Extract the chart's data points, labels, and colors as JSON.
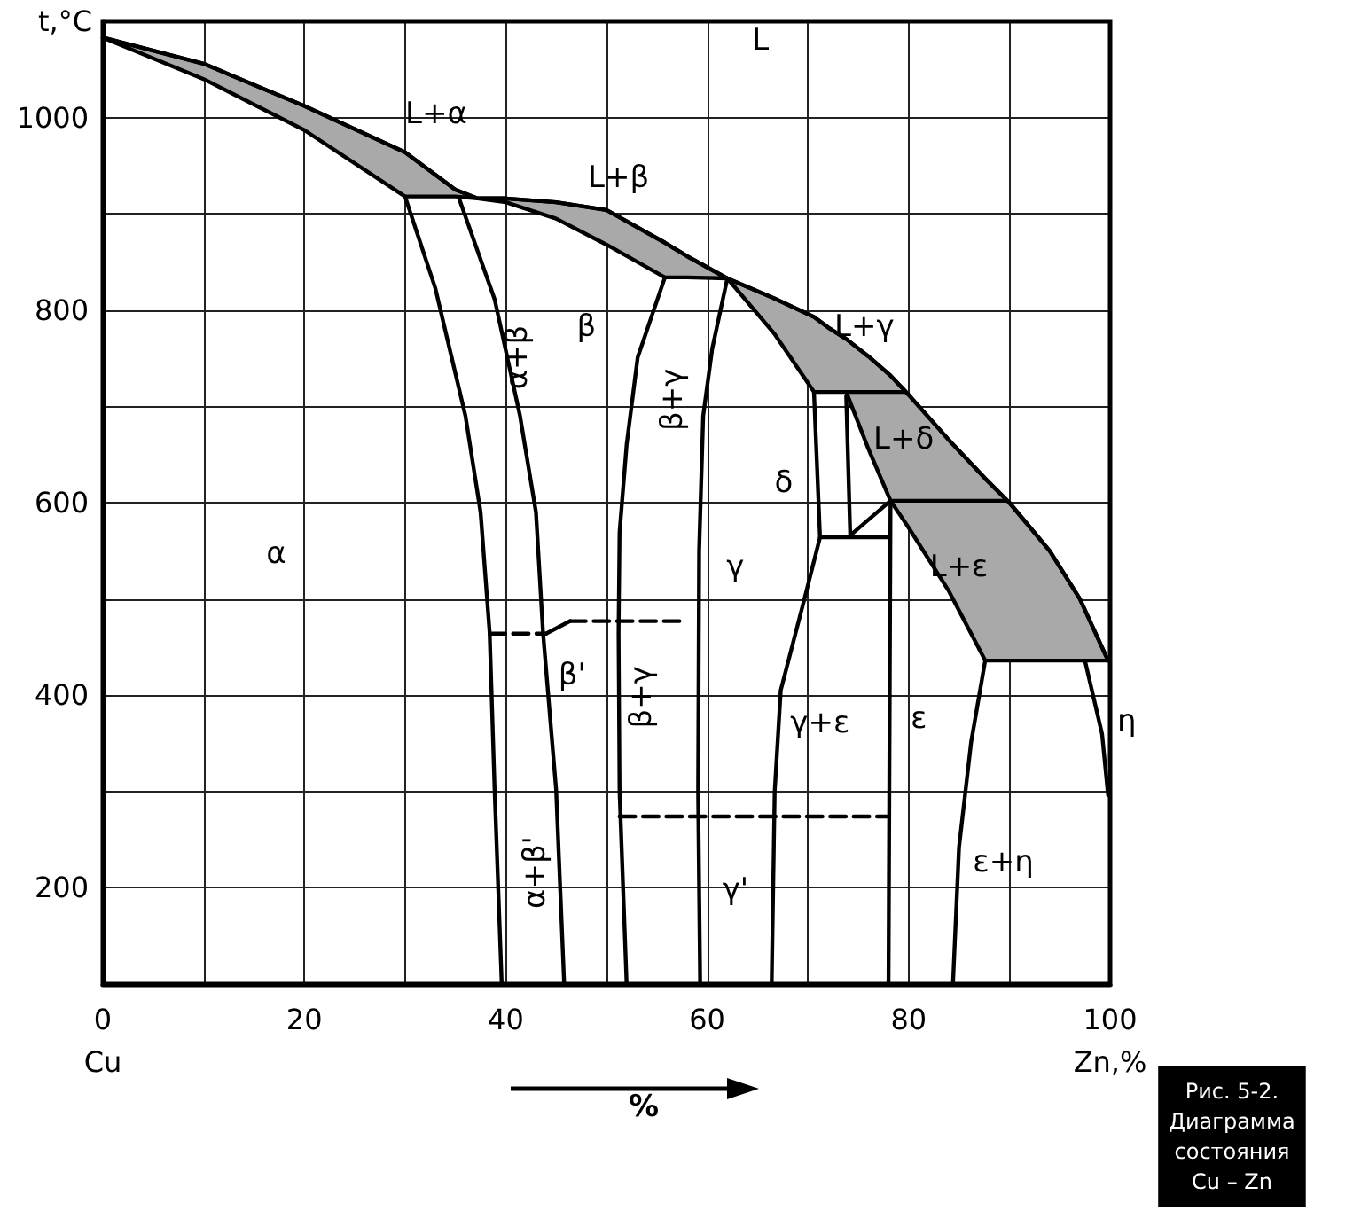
{
  "chart_data": {
    "type": "line",
    "title": "Рис. 5-2.\nДиаграмма\nсостояния\nCu – Zn",
    "xlabel": "%",
    "ylabel": "t,°C",
    "xlim": [
      0,
      100
    ],
    "ylim": [
      100,
      1100
    ],
    "xticks": [
      {
        "value": 0,
        "label": "0\nCu"
      },
      {
        "value": 10,
        "label": null
      },
      20,
      {
        "value": 30,
        "label": null
      },
      40,
      {
        "value": 50,
        "label": null
      },
      60,
      {
        "value": 70,
        "label": null
      },
      80,
      {
        "value": 90,
        "label": null
      },
      {
        "value": 100,
        "label": "100\nZn,%"
      }
    ],
    "yticks": [
      {
        "value": 100,
        "label": null
      },
      200,
      {
        "value": 300,
        "label": null
      },
      400,
      {
        "value": 500,
        "label": null
      },
      600,
      {
        "value": 700,
        "label": null
      },
      800,
      {
        "value": 900,
        "label": null
      },
      1000,
      {
        "value": 1100,
        "label": null
      }
    ],
    "grid": true,
    "marker": "none",
    "line_style": "solid",
    "series": [
      {
        "color": "#000000",
        "x": [
          0,
          10,
          20,
          30,
          35,
          37.2,
          40,
          45,
          50,
          55.8,
          58,
          62,
          66.7,
          70.6,
          72,
          73.8,
          76,
          78.2,
          80,
          84,
          87.6,
          90,
          94,
          97,
          99.8
        ],
        "values": [
          1083,
          1056,
          1012,
          964,
          925,
          916,
          916,
          912,
          904,
          870,
          856,
          833,
          812,
          793,
          782,
          770,
          752,
          732,
          712,
          665,
          625,
          600,
          550,
          500,
          436
        ],
        "lower": [
          1083,
          1040,
          987,
          918,
          918,
          916,
          912,
          895,
          868,
          834,
          834,
          833,
          775,
          715,
          715,
          715,
          656,
          602,
          574,
          508,
          436,
          436,
          436,
          436,
          436
        ],
        "upper": [
          1083,
          1056,
          1012,
          964,
          925,
          916,
          916,
          912,
          904,
          870,
          856,
          833,
          812,
          793,
          782,
          770,
          752,
          732,
          712,
          665,
          625,
          600,
          550,
          500,
          436
        ]
      },
      {
        "color": "#000000",
        "x": [
          30,
          33,
          36,
          37.5,
          38.4,
          38.9,
          39.6
        ],
        "values": [
          918,
          823,
          690,
          590,
          465,
          300,
          100
        ]
      },
      {
        "color": "#000000",
        "x": [
          35.4,
          38.9,
          41.4,
          43,
          43.7,
          45,
          45.8
        ],
        "values": [
          915,
          811,
          691,
          590,
          465,
          302,
          100
        ]
      },
      {
        "color": "#000000",
        "x": [
          55.8,
          53.1,
          52,
          51.3,
          51.2,
          51.3,
          52
        ],
        "values": [
          834,
          751,
          660,
          569,
          465,
          300,
          100
        ]
      },
      {
        "color": "#000000",
        "x": [
          62,
          60.5,
          59.6,
          59.2,
          59.1,
          59.3
        ],
        "values": [
          833,
          760,
          690,
          550,
          300,
          100
        ]
      },
      {
        "color": "#000000",
        "x": [
          73.8,
          74.2,
          78.2
        ],
        "values": [
          711,
          566,
          602
        ]
      },
      {
        "color": "#000000",
        "x": [
          71.2,
          77.9
        ],
        "values": [
          564,
          564
        ]
      },
      {
        "color": "#000000",
        "x": [
          70.6,
          71.2,
          69.7,
          67.3,
          66.7,
          66.4
        ],
        "values": [
          715,
          564,
          502,
          405,
          300,
          100
        ]
      },
      {
        "color": "#000000",
        "x": [
          78.2,
          78
        ],
        "values": [
          602,
          100
        ]
      },
      {
        "color": "#000000",
        "x": [
          87.6,
          86.2,
          85,
          84.4
        ],
        "values": [
          436,
          351,
          242,
          100
        ]
      },
      {
        "color": "#000000",
        "x": [
          97.5,
          99.2,
          99.8
        ],
        "values": [
          436,
          360,
          296
        ]
      },
      {
        "color": "#000000",
        "x": [
          73.8,
          79.6
        ],
        "values": [
          715,
          715
        ]
      },
      {
        "color": "#000000",
        "x": [
          78.2,
          89.7
        ],
        "values": [
          602,
          602
        ]
      },
      {
        "color": "#000000",
        "x": [
          38.4,
          44
        ],
        "values": [
          464,
          464
        ],
        "line_style": "dashed"
      },
      {
        "color": "#000000",
        "x": [
          44,
          46.4
        ],
        "values": [
          464,
          477
        ]
      },
      {
        "color": "#000000",
        "x": [
          46.4,
          57.9
        ],
        "values": [
          477,
          477
        ],
        "line_style": "dashed"
      },
      {
        "color": "#000000",
        "x": [
          51.3,
          77.9
        ],
        "values": [
          274,
          274
        ],
        "line_style": "dashed"
      }
    ],
    "annotations": [
      "L",
      "L+α",
      "L+β",
      "β",
      "α+β",
      "β+γ",
      "L+γ",
      "L+δ",
      "δ",
      "α",
      "γ",
      "L+ε",
      "β'",
      "β+γ",
      "γ+ε",
      "ε",
      "η",
      "α+β'",
      "ε+η",
      "γ'"
    ]
  }
}
